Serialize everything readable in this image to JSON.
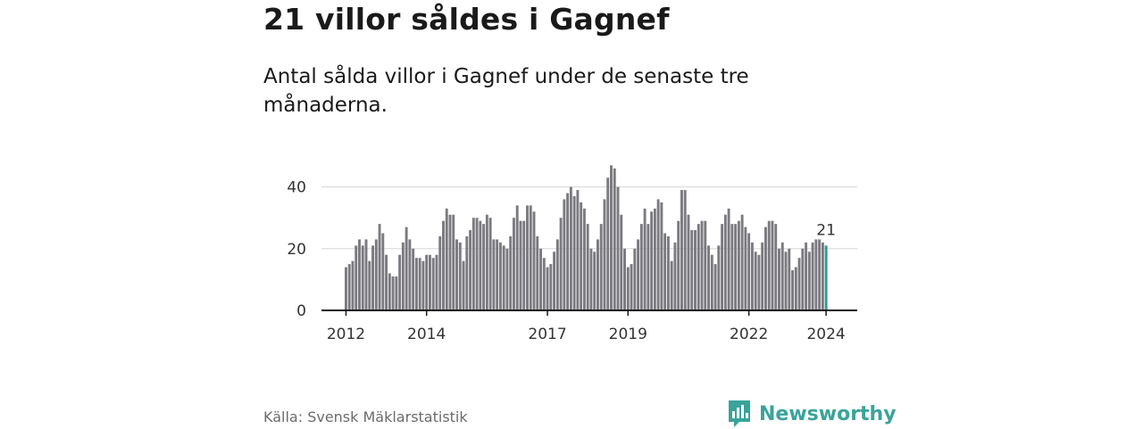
{
  "title": "21 villor såldes i Gagnef",
  "subtitle": "Antal sålda villor i Gagnef under de senaste tre månaderna.",
  "source": "Källa: Svensk Mäklarstatistik",
  "brand": "Newsworthy",
  "colors": {
    "bar": "#7a7a80",
    "highlight": "#2a9d90",
    "grid": "#d6d6d6",
    "axis": "#1a1a1a",
    "brand": "#3aa39a"
  },
  "chart_data": {
    "type": "bar",
    "ylim": [
      0,
      50
    ],
    "yticks": [
      0,
      20,
      40
    ],
    "xtick_labels": [
      "2012",
      "2014",
      "2017",
      "2019",
      "2022",
      "2024"
    ],
    "grid": true,
    "values": [
      14,
      15,
      16,
      21,
      23,
      21,
      23,
      16,
      21,
      23,
      28,
      25,
      18,
      12,
      11,
      11,
      18,
      22,
      27,
      23,
      20,
      17,
      17,
      16,
      18,
      18,
      17,
      18,
      24,
      29,
      33,
      31,
      31,
      23,
      22,
      16,
      24,
      26,
      30,
      30,
      29,
      28,
      31,
      30,
      23,
      23,
      22,
      21,
      20,
      24,
      30,
      34,
      29,
      29,
      34,
      34,
      32,
      24,
      20,
      17,
      14,
      15,
      19,
      23,
      30,
      36,
      38,
      40,
      37,
      39,
      35,
      33,
      28,
      20,
      19,
      23,
      28,
      36,
      43,
      47,
      46,
      40,
      31,
      20,
      14,
      15,
      20,
      23,
      28,
      33,
      28,
      32,
      33,
      36,
      35,
      25,
      24,
      16,
      22,
      29,
      39,
      39,
      31,
      26,
      26,
      28,
      29,
      29,
      21,
      18,
      15,
      21,
      28,
      31,
      33,
      28,
      28,
      29,
      31,
      27,
      25,
      22,
      19,
      18,
      22,
      27,
      29,
      29,
      28,
      20,
      22,
      19,
      20,
      13,
      14,
      17,
      20,
      22,
      19,
      22,
      23,
      23,
      22,
      21
    ],
    "last_value_label": "21"
  }
}
